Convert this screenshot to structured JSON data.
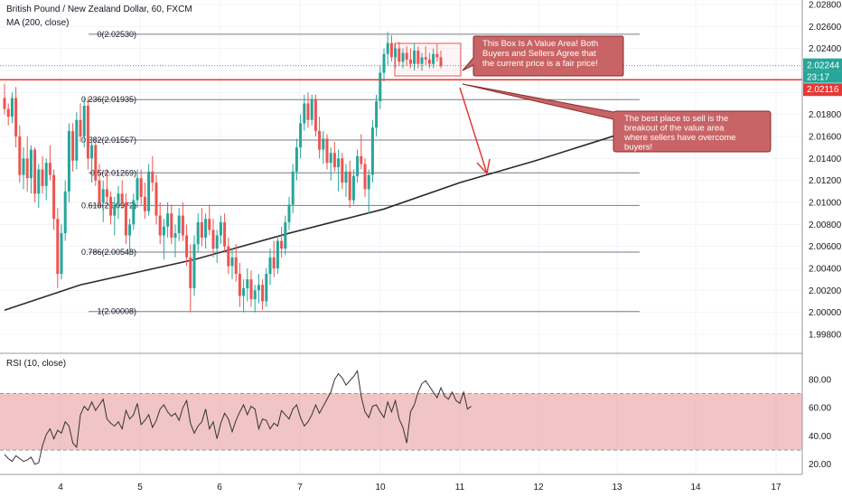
{
  "chart_data": {
    "type": "candlestick",
    "title": "British Pound / New Zealand Dollar, 60, FXCM",
    "indicator": "MA (200, close)",
    "x_ticks": [
      "4",
      "5",
      "6",
      "7",
      "10",
      "11",
      "12",
      "13",
      "14",
      "17"
    ],
    "price_axis": {
      "range": [
        1.997,
        2.0275
      ],
      "ticks": [
        "2.02800",
        "2.02600",
        "2.02400",
        "2.02200",
        "2.02000",
        "2.01800",
        "2.01600",
        "2.01400",
        "2.01200",
        "2.01000",
        "2.00800",
        "2.00600",
        "2.00400",
        "2.00200",
        "2.00000",
        "1.99800"
      ]
    },
    "current_price": {
      "label": "2.02244",
      "value": 2.02244,
      "countdown": "23:17"
    },
    "level_line": {
      "label": "2.02116",
      "value": 2.02116
    },
    "fib_levels": [
      {
        "label": "0(2.02530)",
        "value": 2.0253
      },
      {
        "label": "0.236(2.01935)",
        "value": 2.01935
      },
      {
        "label": "0.382(2.01567)",
        "value": 2.01567
      },
      {
        "label": "0.5(2.01269)",
        "value": 2.01269
      },
      {
        "label": "0.618(2.00972)",
        "value": 2.00972
      },
      {
        "label": "0.786(2.00548)",
        "value": 2.00548
      },
      {
        "label": "1(2.00008)",
        "value": 2.00008
      }
    ],
    "candles_ohlc": [
      [
        2.0195,
        2.0208,
        2.018,
        2.0185
      ],
      [
        2.0185,
        2.019,
        2.017,
        2.0178
      ],
      [
        2.0178,
        2.02,
        2.0172,
        2.0195
      ],
      [
        2.0195,
        2.0205,
        2.015,
        2.016
      ],
      [
        2.016,
        2.017,
        2.0118,
        2.0125
      ],
      [
        2.0125,
        2.015,
        2.0112,
        2.014
      ],
      [
        2.014,
        2.016,
        2.011,
        2.0122
      ],
      [
        2.0122,
        2.0152,
        2.0108,
        2.0148
      ],
      [
        2.0148,
        2.015,
        2.01,
        2.0108
      ],
      [
        2.0108,
        2.0135,
        2.0095,
        2.013
      ],
      [
        2.013,
        2.0142,
        2.0108,
        2.0115
      ],
      [
        2.0115,
        2.014,
        2.0102,
        2.0136
      ],
      [
        2.0136,
        2.0152,
        2.012,
        2.0125
      ],
      [
        2.0125,
        2.013,
        2.0075,
        2.0085
      ],
      [
        2.0085,
        2.0095,
        2.0022,
        2.0035
      ],
      [
        2.0035,
        2.008,
        2.003,
        2.0072
      ],
      [
        2.0072,
        2.012,
        2.0065,
        2.011
      ],
      [
        2.011,
        2.0172,
        2.01,
        2.0165
      ],
      [
        2.0165,
        2.0172,
        2.0128,
        2.0138
      ],
      [
        2.0138,
        2.0182,
        2.013,
        2.0175
      ],
      [
        2.0175,
        2.019,
        2.0155,
        2.016
      ],
      [
        2.016,
        2.0195,
        2.015,
        2.0188
      ],
      [
        2.0188,
        2.0195,
        2.013,
        2.014
      ],
      [
        2.014,
        2.016,
        2.0118,
        2.0152
      ],
      [
        2.0152,
        2.016,
        2.0115,
        2.012
      ],
      [
        2.012,
        2.0135,
        2.0095,
        2.01
      ],
      [
        2.01,
        2.012,
        2.0082,
        2.0112
      ],
      [
        2.0112,
        2.013,
        2.0098,
        2.0105
      ],
      [
        2.0105,
        2.011,
        2.008,
        2.0088
      ],
      [
        2.0088,
        2.0105,
        2.007,
        2.0098
      ],
      [
        2.0098,
        2.0115,
        2.0085,
        2.0108
      ],
      [
        2.0108,
        2.012,
        2.0095,
        2.01
      ],
      [
        2.01,
        2.0108,
        2.0062,
        2.007
      ],
      [
        2.007,
        2.0085,
        2.0052,
        2.008
      ],
      [
        2.008,
        2.0108,
        2.0075,
        2.0102
      ],
      [
        2.0102,
        2.013,
        2.0095,
        2.0122
      ],
      [
        2.0122,
        2.013,
        2.0098,
        2.0105
      ],
      [
        2.0105,
        2.0118,
        2.0085,
        2.0092
      ],
      [
        2.0092,
        2.0135,
        2.0088,
        2.0128
      ],
      [
        2.0128,
        2.0142,
        2.011,
        2.0118
      ],
      [
        2.0118,
        2.0125,
        2.008,
        2.0088
      ],
      [
        2.0088,
        2.01,
        2.0062,
        2.007
      ],
      [
        2.007,
        2.0085,
        2.0048,
        2.0078
      ],
      [
        2.0078,
        2.01,
        2.0068,
        2.009
      ],
      [
        2.009,
        2.0098,
        2.0062,
        2.0068
      ],
      [
        2.0068,
        2.008,
        2.005,
        2.0072
      ],
      [
        2.0072,
        2.0095,
        2.0065,
        2.0088
      ],
      [
        2.0088,
        2.01,
        2.0065,
        2.007
      ],
      [
        2.007,
        2.008,
        2.0042,
        2.005
      ],
      [
        2.005,
        2.0062,
        2.0,
        2.0022
      ],
      [
        2.0022,
        2.007,
        2.0015,
        2.0062
      ],
      [
        2.0062,
        2.009,
        2.0055,
        2.0082
      ],
      [
        2.0082,
        2.0095,
        2.006,
        2.0068
      ],
      [
        2.0068,
        2.009,
        2.0058,
        2.0085
      ],
      [
        2.0085,
        2.0098,
        2.007,
        2.0075
      ],
      [
        2.0075,
        2.0085,
        2.005,
        2.0058
      ],
      [
        2.0058,
        2.0075,
        2.0045,
        2.007
      ],
      [
        2.007,
        2.0088,
        2.0062,
        2.0082
      ],
      [
        2.0082,
        2.009,
        2.0055,
        2.006
      ],
      [
        2.006,
        2.0068,
        2.0035,
        2.0042
      ],
      [
        2.0042,
        2.0058,
        2.003,
        2.005
      ],
      [
        2.005,
        2.0062,
        2.0028,
        2.0035
      ],
      [
        2.0035,
        2.0045,
        2.0005,
        2.0015
      ],
      [
        2.0015,
        2.003,
        2.0,
        2.0022
      ],
      [
        2.0022,
        2.004,
        2.001,
        2.003
      ],
      [
        2.003,
        2.0038,
        2.0005,
        2.0012
      ],
      [
        2.0012,
        2.0025,
        2.0,
        2.002
      ],
      [
        2.002,
        2.0035,
        2.0008,
        2.0025
      ],
      [
        2.0025,
        2.003,
        2.0002,
        2.001
      ],
      [
        2.001,
        2.004,
        2.0005,
        2.0035
      ],
      [
        2.0035,
        2.0058,
        2.0025,
        2.005
      ],
      [
        2.005,
        2.0065,
        2.0032,
        2.004
      ],
      [
        2.004,
        2.007,
        2.0035,
        2.0065
      ],
      [
        2.0065,
        2.0078,
        2.005,
        2.0058
      ],
      [
        2.0058,
        2.0088,
        2.0052,
        2.0082
      ],
      [
        2.0082,
        2.0105,
        2.0075,
        2.0098
      ],
      [
        2.0098,
        2.0135,
        2.009,
        2.0128
      ],
      [
        2.0128,
        2.0158,
        2.012,
        2.015
      ],
      [
        2.015,
        2.018,
        2.014,
        2.0172
      ],
      [
        2.0172,
        2.0198,
        2.0165,
        2.019
      ],
      [
        2.019,
        2.02,
        2.0168,
        2.0175
      ],
      [
        2.0175,
        2.0198,
        2.017,
        2.0194
      ],
      [
        2.0194,
        2.0198,
        2.016,
        2.0165
      ],
      [
        2.0165,
        2.0178,
        2.014,
        2.0148
      ],
      [
        2.0148,
        2.0165,
        2.0135,
        2.0158
      ],
      [
        2.0158,
        2.0162,
        2.013,
        2.0136
      ],
      [
        2.0136,
        2.015,
        2.012,
        2.0145
      ],
      [
        2.0145,
        2.0155,
        2.0128,
        2.0132
      ],
      [
        2.0132,
        2.0148,
        2.011,
        2.014
      ],
      [
        2.014,
        2.0145,
        2.0112,
        2.0118
      ],
      [
        2.0118,
        2.0135,
        2.0105,
        2.0128
      ],
      [
        2.0128,
        2.0138,
        2.0095,
        2.0102
      ],
      [
        2.0102,
        2.013,
        2.0098,
        2.0124
      ],
      [
        2.0124,
        2.0148,
        2.0118,
        2.0142
      ],
      [
        2.0142,
        2.0162,
        2.013,
        2.0135
      ],
      [
        2.0135,
        2.014,
        2.0105,
        2.0112
      ],
      [
        2.0112,
        2.013,
        2.009,
        2.0125
      ],
      [
        2.0125,
        2.0175,
        2.0118,
        2.0168
      ],
      [
        2.0168,
        2.0198,
        2.016,
        2.0192
      ],
      [
        2.0192,
        2.0225,
        2.0185,
        2.0218
      ],
      [
        2.0218,
        2.024,
        2.021,
        2.0235
      ],
      [
        2.0235,
        2.0255,
        2.0225,
        2.0245
      ],
      [
        2.0245,
        2.0252,
        2.0228,
        2.0232
      ],
      [
        2.0232,
        2.0245,
        2.0222,
        2.024
      ],
      [
        2.024,
        2.0246,
        2.0224,
        2.0228
      ],
      [
        2.0228,
        2.024,
        2.0222,
        2.0236
      ],
      [
        2.0236,
        2.0242,
        2.0224,
        2.023
      ],
      [
        2.023,
        2.024,
        2.0222,
        2.0226
      ],
      [
        2.0226,
        2.0245,
        2.022,
        2.0238
      ],
      [
        2.0238,
        2.0242,
        2.0222,
        2.0226
      ],
      [
        2.0226,
        2.0236,
        2.022,
        2.0232
      ],
      [
        2.0232,
        2.0242,
        2.0225,
        2.023
      ],
      [
        2.023,
        2.0236,
        2.0222,
        2.0226
      ],
      [
        2.0226,
        2.024,
        2.0222,
        2.0235
      ],
      [
        2.0235,
        2.0245,
        2.0228,
        2.0232
      ],
      [
        2.0232,
        2.0238,
        2.0222,
        2.0224
      ]
    ],
    "ma_200": [
      [
        0,
        2.0002
      ],
      [
        20,
        2.0025
      ],
      [
        50,
        2.0048
      ],
      [
        75,
        2.0072
      ],
      [
        100,
        2.0094
      ],
      [
        120,
        2.0118
      ],
      [
        140,
        2.0138
      ],
      [
        162,
        2.0162
      ],
      [
        180,
        2.0182
      ]
    ],
    "rsi": {
      "label": "RSI (10, close)",
      "range": [
        13,
        92
      ],
      "ticks": [
        "80.00",
        "60.00",
        "40.00",
        "20.00"
      ],
      "band": [
        30,
        70
      ],
      "values": [
        27,
        24,
        22,
        26,
        24,
        22,
        23,
        25,
        20,
        21,
        33,
        41,
        45,
        38,
        44,
        42,
        50,
        47,
        35,
        32,
        55,
        61,
        58,
        64,
        58,
        62,
        66,
        52,
        49,
        47,
        50,
        45,
        58,
        52,
        55,
        63,
        48,
        51,
        55,
        46,
        51,
        59,
        62,
        57,
        54,
        56,
        51,
        60,
        65,
        49,
        42,
        47,
        50,
        59,
        45,
        50,
        38,
        49,
        56,
        52,
        43,
        51,
        57,
        62,
        55,
        61,
        59,
        45,
        52,
        51,
        45,
        49,
        47,
        58,
        55,
        52,
        59,
        62,
        53,
        47,
        50,
        55,
        62,
        56,
        61,
        66,
        71,
        80,
        84,
        81,
        76,
        79,
        82,
        86,
        68,
        57,
        53,
        61,
        62,
        57,
        53,
        64,
        57,
        65,
        52,
        46,
        35,
        57,
        62,
        71,
        77,
        79,
        75,
        71,
        67,
        74,
        68,
        66,
        71,
        65,
        63,
        71,
        59,
        61
      ]
    },
    "annotations": [
      "This Box Is A Value Area! Both Buyers and Sellers Agree that the current price is a fair price!",
      "The best place to sell is the breakout of the value area where sellers have overcome buyers!"
    ]
  },
  "colors": {
    "up": "#26a69a",
    "down": "#ef5350",
    "ma": "#2b2b2b",
    "current_price": "#26a69a",
    "level_line": "#e53935",
    "rsi_band": "rgba(230,150,150,0.55)",
    "note_fill": "#c96466",
    "note_border": "#8b2a2d"
  }
}
